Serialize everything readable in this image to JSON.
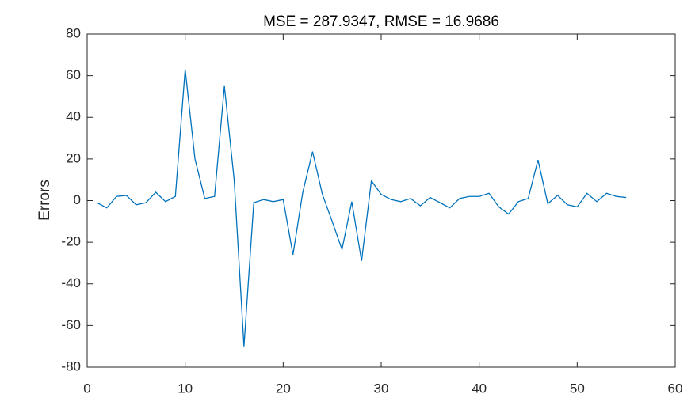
{
  "chart_data": {
    "type": "line",
    "title": "MSE = 287.9347, RMSE = 16.9686",
    "ylabel": "Errors",
    "x": [
      1,
      2,
      3,
      4,
      5,
      6,
      7,
      8,
      9,
      10,
      11,
      12,
      13,
      14,
      15,
      16,
      17,
      18,
      19,
      20,
      21,
      22,
      23,
      24,
      25,
      26,
      27,
      28,
      29,
      30,
      31,
      32,
      33,
      34,
      35,
      36,
      37,
      38,
      39,
      40,
      41,
      42,
      43,
      44,
      45,
      46,
      47,
      48,
      49,
      50,
      51,
      52,
      53,
      54,
      55
    ],
    "values": [
      -1,
      -3.5,
      2,
      2.5,
      -2,
      -1,
      4,
      -0.5,
      2,
      63,
      20,
      1,
      2,
      55,
      10,
      -70,
      -1,
      0.5,
      -0.5,
      0.5,
      -26,
      4,
      23.5,
      3,
      -10,
      -23.5,
      -0.5,
      -29,
      9.5,
      3,
      0.5,
      -0.5,
      1,
      -2.5,
      1.5,
      -1,
      -3.5,
      1,
      2,
      2,
      3.5,
      -3,
      -6.5,
      -0.5,
      1,
      19.5,
      -1.5,
      2.5,
      -2,
      -3,
      3.5,
      -0.5,
      3.5,
      2,
      1.5
    ],
    "color": "#0072bd",
    "xlim": [
      0,
      60
    ],
    "xticks": [
      0,
      10,
      20,
      30,
      40,
      50,
      60
    ],
    "ylim": [
      -80,
      80
    ],
    "yticks": [
      -80,
      -60,
      -40,
      -20,
      0,
      20,
      40,
      60,
      80
    ]
  }
}
